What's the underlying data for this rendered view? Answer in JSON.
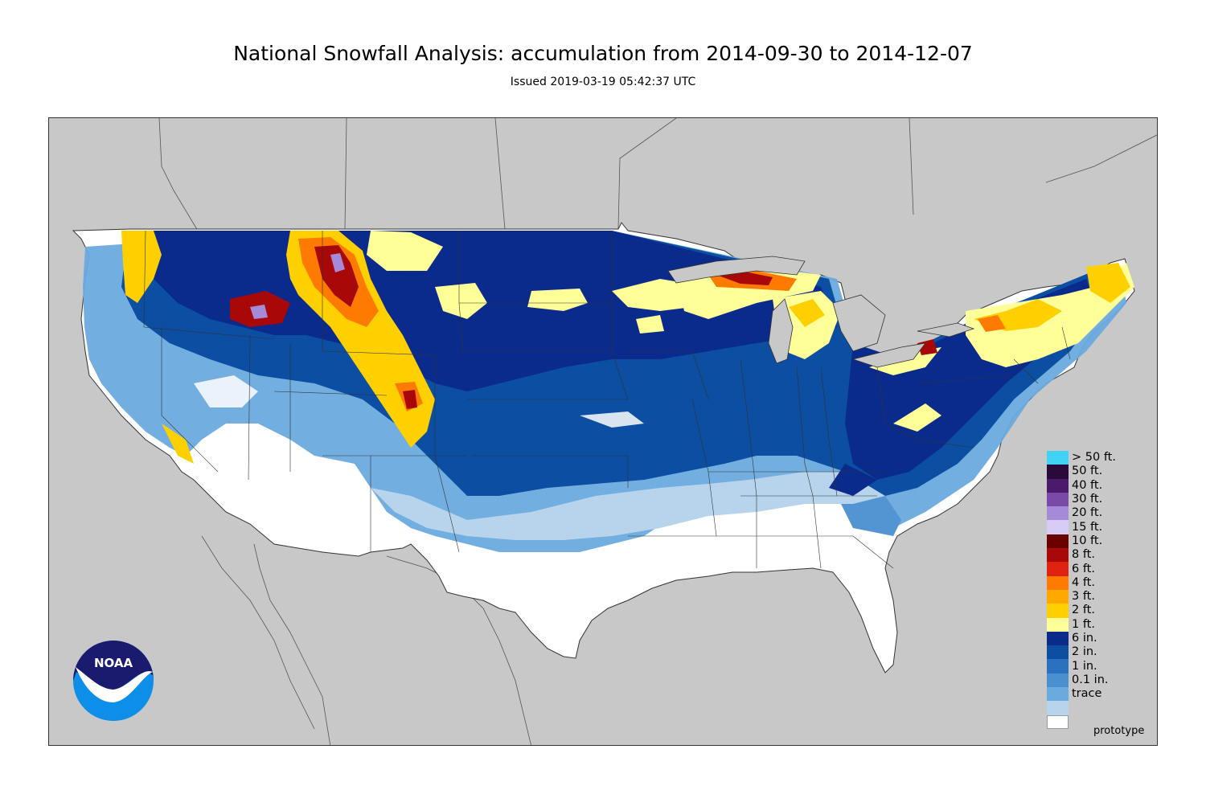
{
  "title": "National Snowfall Analysis: accumulation from 2014-09-30 to 2014-12-07",
  "subtitle": "Issued 2019-03-19 05:42:37 UTC",
  "prototype_label": "prototype",
  "logo_text": "NOAA",
  "colors": {
    "background_land": "#c8c8c8",
    "us_no_snow": "#ffffff",
    "border_line": "#333333",
    "noaa_dark": "#1a1a6e",
    "noaa_light": "#0d8ee9"
  },
  "legend": [
    {
      "label": "> 50 ft.",
      "color": "#41d3f5"
    },
    {
      "label": "50 ft.",
      "color": "#2a0a3a"
    },
    {
      "label": "40 ft.",
      "color": "#4b1a6a"
    },
    {
      "label": "30 ft.",
      "color": "#7a4aa8"
    },
    {
      "label": "20 ft.",
      "color": "#a48ad8"
    },
    {
      "label": "15 ft.",
      "color": "#d6ccf5"
    },
    {
      "label": "10 ft.",
      "color": "#6b0000"
    },
    {
      "label": "8 ft.",
      "color": "#a80808"
    },
    {
      "label": "6 ft.",
      "color": "#e02210"
    },
    {
      "label": "4 ft.",
      "color": "#ff7a00"
    },
    {
      "label": "3 ft.",
      "color": "#ffa800"
    },
    {
      "label": "2 ft.",
      "color": "#ffd000"
    },
    {
      "label": "1 ft.",
      "color": "#ffff99"
    },
    {
      "label": "6 in.",
      "color": "#0a2a8c"
    },
    {
      "label": "2 in.",
      "color": "#0b4ea2"
    },
    {
      "label": "1 in.",
      "color": "#2a72c0"
    },
    {
      "label": "0.1 in.",
      "color": "#4a90d0"
    },
    {
      "label": "trace",
      "color": "#6aaade"
    },
    {
      "label": "",
      "color": "#b8d4ec"
    },
    {
      "label": "",
      "color": "#ffffff"
    }
  ]
}
